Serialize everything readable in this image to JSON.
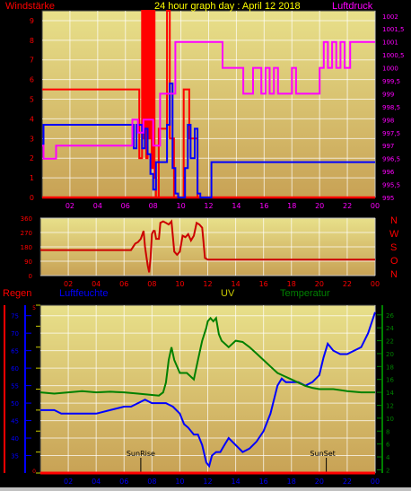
{
  "colors": {
    "wind": "#ff0000",
    "gust": "#ff0000",
    "avg_wind": "#0000ff",
    "pressure": "#ff00ff",
    "direction": "#cc0000",
    "rain": "#ff0000",
    "humidity": "#0000ff",
    "uv": "#cccc00",
    "temperature": "#008000",
    "panel_bg_top": "#e8e08a",
    "panel_bg_bottom": "#c8a255",
    "grid": "#ffffff"
  },
  "chart_data": [
    {
      "type": "line",
      "title": "24 hour graph day : April 12 2018",
      "left_label": "Windstärke",
      "right_label": "Luftdruck",
      "x_ticks": [
        "02",
        "04",
        "06",
        "08",
        "10",
        "12",
        "14",
        "16",
        "18",
        "20",
        "22",
        "00"
      ],
      "xlim": [
        0,
        24
      ],
      "left_ticks": [
        "0",
        "1",
        "2",
        "3",
        "4",
        "5",
        "6",
        "7",
        "8",
        "9"
      ],
      "ylim_left": [
        0,
        9.5
      ],
      "right_ticks": [
        "995",
        "995,5",
        "996",
        "996,5",
        "997",
        "997,5",
        "998",
        "998,5",
        "999",
        "999,5",
        "1000",
        "1000,5",
        "1001",
        "1001,5",
        "1002"
      ],
      "ylim_right": [
        995,
        1002.2
      ],
      "series": [
        {
          "key": "gust",
          "axis": "left",
          "color": "#ff0000",
          "x": [
            0,
            7.0,
            7.0,
            7.2,
            7.2,
            7.3,
            7.3,
            7.4,
            7.4,
            7.5,
            7.5,
            7.6,
            7.6,
            7.7,
            7.7,
            7.8,
            7.8,
            7.9,
            7.9,
            8.0,
            8.0,
            8.1,
            8.1,
            8.2,
            8.2,
            8.4,
            8.4,
            9.0,
            9.0,
            9.2,
            9.2,
            9.5,
            9.5,
            9.8,
            9.8,
            10.2,
            10.2,
            10.6,
            10.6,
            11.2,
            11.2,
            11.4,
            11.4,
            11.6,
            11.6,
            24
          ],
          "y": [
            5.5,
            5.5,
            2.0,
            2.0,
            9.5,
            9.5,
            3.0,
            3.0,
            9.5,
            9.5,
            2.0,
            2.0,
            9.5,
            9.5,
            3.0,
            3.0,
            9.5,
            9.5,
            1.5,
            1.5,
            9.5,
            9.5,
            1.0,
            1.0,
            0,
            0,
            3.5,
            3.5,
            9.5,
            9.5,
            3.0,
            3.0,
            0,
            0,
            0,
            0,
            5.5,
            5.5,
            3.0,
            3.0,
            0,
            0,
            0,
            0,
            0,
            0
          ]
        },
        {
          "key": "wind",
          "axis": "left",
          "color": "#ff0000",
          "x": [
            0,
            24
          ],
          "y": [
            0,
            0
          ]
        },
        {
          "key": "avg_wind",
          "axis": "left",
          "color": "#0000ff",
          "x": [
            0,
            0.1,
            0.1,
            6.6,
            6.6,
            6.8,
            6.8,
            7.0,
            7.0,
            7.2,
            7.2,
            7.4,
            7.4,
            7.6,
            7.6,
            7.8,
            7.8,
            8.0,
            8.0,
            8.2,
            8.2,
            9.0,
            9.0,
            9.2,
            9.2,
            9.4,
            9.4,
            9.6,
            9.6,
            9.8,
            9.8,
            10.3,
            10.3,
            10.5,
            10.5,
            10.7,
            10.7,
            11.0,
            11.0,
            11.2,
            11.2,
            11.4,
            11.4,
            11.8,
            11.8,
            12.2,
            12.2,
            24
          ],
          "y": [
            2.7,
            2.7,
            3.7,
            3.7,
            2.5,
            2.5,
            3.7,
            3.7,
            3.7,
            3.7,
            2.5,
            2.5,
            3.5,
            3.5,
            2.2,
            2.2,
            1.2,
            1.2,
            0.4,
            0.4,
            1.8,
            1.8,
            3.7,
            3.7,
            5.8,
            5.8,
            1.5,
            1.5,
            0.2,
            0.2,
            0,
            0,
            1.5,
            1.5,
            3.7,
            3.7,
            2.0,
            2.0,
            3.5,
            3.5,
            0.2,
            0.2,
            0,
            0,
            0,
            0,
            1.8,
            1.8
          ]
        },
        {
          "key": "pressure",
          "axis": "right",
          "color": "#ff00ff",
          "x": [
            0,
            0.1,
            0.1,
            0.5,
            0.5,
            1.0,
            1.0,
            6.5,
            6.5,
            6.9,
            6.9,
            7.3,
            7.3,
            7.5,
            7.5,
            8.0,
            8.0,
            8.5,
            8.5,
            9.2,
            9.2,
            9.6,
            9.6,
            12.5,
            12.5,
            13.0,
            13.0,
            14.5,
            14.5,
            15.2,
            15.2,
            15.8,
            15.8,
            16.1,
            16.1,
            16.4,
            16.4,
            16.7,
            16.7,
            17.0,
            17.0,
            18.0,
            18.0,
            18.3,
            18.3,
            18.6,
            18.6,
            20.0,
            20.0,
            20.3,
            20.3,
            20.6,
            20.6,
            20.9,
            20.9,
            21.2,
            21.2,
            21.5,
            21.5,
            21.8,
            21.8,
            22.2,
            22.2,
            22.6,
            22.6,
            24
          ],
          "y": [
            997,
            997,
            996.5,
            996.5,
            996.5,
            996.5,
            997,
            997,
            998,
            998,
            997.5,
            997.5,
            998,
            998,
            998,
            998,
            997,
            997,
            999,
            999,
            999,
            999,
            1001,
            1001,
            1001,
            1001,
            1000,
            1000,
            999,
            999,
            1000,
            1000,
            999,
            999,
            1000,
            1000,
            999,
            999,
            1000,
            1000,
            999,
            999,
            1000,
            1000,
            999,
            999,
            999,
            999,
            1000,
            1000,
            1001,
            1001,
            1000,
            1000,
            1001,
            1001,
            1000,
            1000,
            1001,
            1001,
            1000,
            1000,
            1001,
            1001,
            1001,
            1001
          ]
        }
      ]
    },
    {
      "type": "line",
      "title": "",
      "x_ticks": [
        "02",
        "04",
        "06",
        "08",
        "10",
        "12",
        "14",
        "16",
        "18",
        "20",
        "22",
        "00"
      ],
      "xlim": [
        0,
        24
      ],
      "left_ticks": [
        "0",
        "90",
        "180",
        "270",
        "360"
      ],
      "ylim": [
        0,
        360
      ],
      "direction_labels": [
        "N",
        "W",
        "S",
        "O",
        "N"
      ],
      "series": [
        {
          "key": "direction",
          "color": "#cc0000",
          "x": [
            0,
            6.5,
            6.8,
            7.0,
            7.2,
            7.4,
            7.5,
            7.6,
            7.7,
            7.8,
            7.9,
            8.0,
            8.1,
            8.2,
            8.3,
            8.5,
            8.6,
            8.8,
            9.0,
            9.2,
            9.4,
            9.6,
            9.8,
            10.0,
            10.2,
            10.4,
            10.6,
            10.8,
            11.0,
            11.2,
            11.4,
            11.6,
            11.8,
            12.0,
            24
          ],
          "y": [
            160,
            160,
            200,
            210,
            230,
            280,
            180,
            120,
            60,
            20,
            110,
            260,
            280,
            280,
            230,
            230,
            330,
            340,
            330,
            320,
            340,
            150,
            130,
            150,
            250,
            240,
            260,
            220,
            250,
            330,
            320,
            300,
            110,
            100,
            100
          ]
        }
      ]
    },
    {
      "type": "line",
      "title": "",
      "labels": {
        "rain": "Regen",
        "humidity": "Luftfeuchte",
        "uv": "UV",
        "temperature": "Temperatur"
      },
      "x_ticks": [
        "02",
        "04",
        "06",
        "08",
        "10",
        "12",
        "14",
        "16",
        "18",
        "20",
        "22",
        "00"
      ],
      "xlim": [
        0,
        24
      ],
      "humidity_ticks": [
        "35",
        "40",
        "45",
        "50",
        "55",
        "60",
        "65",
        "70",
        "75"
      ],
      "humidity_lim": [
        30,
        78
      ],
      "temp_ticks": [
        "2",
        "4",
        "6",
        "8",
        "10",
        "12",
        "14",
        "16",
        "18",
        "20",
        "22",
        "24",
        "26"
      ],
      "temp_lim": [
        1.5,
        27.5
      ],
      "rain_ticks": [
        "0",
        "5"
      ],
      "uv_ticks": [
        "0",
        "1",
        "2",
        "3",
        "4",
        "5",
        "6",
        "7",
        "8"
      ],
      "annotations": [
        {
          "text": "SunRise",
          "x": 7.2
        },
        {
          "text": "SunSet",
          "x": 20.5
        }
      ],
      "series": [
        {
          "key": "humidity",
          "color": "#0000ff",
          "x": [
            0,
            1.0,
            1.5,
            2.0,
            3.0,
            4.0,
            5.0,
            6.0,
            6.5,
            7.0,
            7.5,
            8.0,
            8.5,
            9.0,
            9.5,
            10.0,
            10.3,
            10.6,
            11.0,
            11.3,
            11.6,
            11.9,
            12.1,
            12.3,
            12.6,
            12.9,
            13.2,
            13.5,
            14.0,
            14.5,
            15.0,
            15.5,
            16.0,
            16.5,
            17.0,
            17.3,
            17.6,
            18.0,
            18.5,
            19.0,
            19.5,
            20.0,
            20.3,
            20.6,
            21.0,
            21.5,
            22.0,
            22.5,
            23.0,
            23.5,
            24.0
          ],
          "y": [
            48,
            48,
            47,
            47,
            47,
            47,
            48,
            49,
            49,
            50,
            51,
            50,
            50,
            50,
            49,
            47,
            44,
            43,
            41,
            41,
            38,
            33,
            32,
            35,
            36,
            36,
            38,
            40,
            38,
            36,
            37,
            39,
            42,
            47,
            55,
            57,
            56,
            56,
            56,
            55,
            56,
            58,
            63,
            67,
            65,
            64,
            64,
            65,
            66,
            70,
            76
          ]
        },
        {
          "key": "temperature",
          "color": "#008000",
          "x": [
            0,
            1.0,
            2.0,
            3.0,
            4.0,
            5.0,
            6.0,
            7.0,
            8.0,
            8.5,
            8.8,
            9.0,
            9.2,
            9.4,
            9.6,
            10.0,
            10.5,
            11.0,
            11.3,
            11.6,
            11.9,
            12.0,
            12.2,
            12.4,
            12.6,
            12.8,
            13.0,
            13.5,
            14.0,
            14.5,
            15.0,
            15.5,
            16.0,
            16.5,
            17.0,
            17.5,
            18.0,
            18.5,
            19.0,
            19.5,
            20.0,
            21.0,
            22.0,
            23.0,
            24.0
          ],
          "y": [
            14,
            13.8,
            14,
            14.2,
            14,
            14.1,
            14,
            13.8,
            13.6,
            13.5,
            14,
            15.5,
            19,
            21,
            19,
            17,
            17,
            16,
            19,
            22,
            24,
            25,
            25.5,
            25,
            25.5,
            23,
            22,
            21,
            22,
            21.8,
            21,
            20,
            19,
            18,
            17,
            16.5,
            16,
            15.5,
            15,
            14.7,
            14.5,
            14.5,
            14.2,
            14.0,
            14.0
          ]
        },
        {
          "key": "rain",
          "color": "#ff0000",
          "x": [
            0,
            24
          ],
          "y": [
            0,
            0
          ]
        }
      ]
    }
  ]
}
